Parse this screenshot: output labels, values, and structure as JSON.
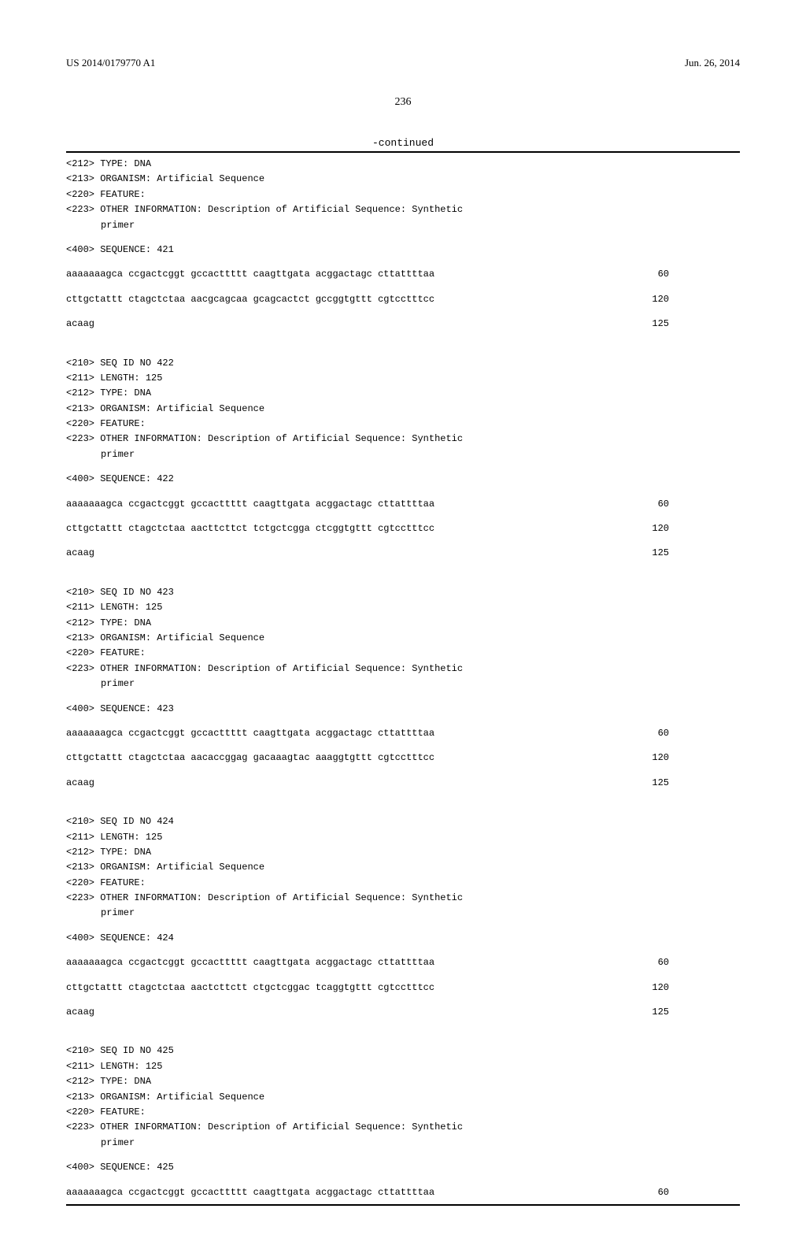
{
  "header": {
    "publication_number": "US 2014/0179770 A1",
    "publication_date": "Jun. 26, 2014"
  },
  "page_number": "236",
  "continued_label": "-continued",
  "top_entry": {
    "meta": [
      "<212> TYPE: DNA",
      "<213> ORGANISM: Artificial Sequence",
      "<220> FEATURE:",
      "<223> OTHER INFORMATION: Description of Artificial Sequence: Synthetic"
    ],
    "meta_indent": "primer",
    "seq_header": "<400> SEQUENCE: 421",
    "rows": [
      {
        "seq": "aaaaaaagca ccgactcggt gccacttttt caagttgata acggactagc cttattttaa",
        "pos": "60"
      },
      {
        "seq": "cttgctattt ctagctctaa aacgcagcaa gcagcactct gccggtgttt cgtcctttcc",
        "pos": "120"
      },
      {
        "seq": "acaag",
        "pos": "125"
      }
    ]
  },
  "entries": [
    {
      "meta": [
        "<210> SEQ ID NO 422",
        "<211> LENGTH: 125",
        "<212> TYPE: DNA",
        "<213> ORGANISM: Artificial Sequence",
        "<220> FEATURE:",
        "<223> OTHER INFORMATION: Description of Artificial Sequence: Synthetic"
      ],
      "meta_indent": "primer",
      "seq_header": "<400> SEQUENCE: 422",
      "rows": [
        {
          "seq": "aaaaaaagca ccgactcggt gccacttttt caagttgata acggactagc cttattttaa",
          "pos": "60"
        },
        {
          "seq": "cttgctattt ctagctctaa aacttcttct tctgctcgga ctcggtgttt cgtcctttcc",
          "pos": "120"
        },
        {
          "seq": "acaag",
          "pos": "125"
        }
      ]
    },
    {
      "meta": [
        "<210> SEQ ID NO 423",
        "<211> LENGTH: 125",
        "<212> TYPE: DNA",
        "<213> ORGANISM: Artificial Sequence",
        "<220> FEATURE:",
        "<223> OTHER INFORMATION: Description of Artificial Sequence: Synthetic"
      ],
      "meta_indent": "primer",
      "seq_header": "<400> SEQUENCE: 423",
      "rows": [
        {
          "seq": "aaaaaaagca ccgactcggt gccacttttt caagttgata acggactagc cttattttaa",
          "pos": "60"
        },
        {
          "seq": "cttgctattt ctagctctaa aacaccggag gacaaagtac aaaggtgttt cgtcctttcc",
          "pos": "120"
        },
        {
          "seq": "acaag",
          "pos": "125"
        }
      ]
    },
    {
      "meta": [
        "<210> SEQ ID NO 424",
        "<211> LENGTH: 125",
        "<212> TYPE: DNA",
        "<213> ORGANISM: Artificial Sequence",
        "<220> FEATURE:",
        "<223> OTHER INFORMATION: Description of Artificial Sequence: Synthetic"
      ],
      "meta_indent": "primer",
      "seq_header": "<400> SEQUENCE: 424",
      "rows": [
        {
          "seq": "aaaaaaagca ccgactcggt gccacttttt caagttgata acggactagc cttattttaa",
          "pos": "60"
        },
        {
          "seq": "cttgctattt ctagctctaa aactcttctt ctgctcggac tcaggtgttt cgtcctttcc",
          "pos": "120"
        },
        {
          "seq": "acaag",
          "pos": "125"
        }
      ]
    },
    {
      "meta": [
        "<210> SEQ ID NO 425",
        "<211> LENGTH: 125",
        "<212> TYPE: DNA",
        "<213> ORGANISM: Artificial Sequence",
        "<220> FEATURE:",
        "<223> OTHER INFORMATION: Description of Artificial Sequence: Synthetic"
      ],
      "meta_indent": "primer",
      "seq_header": "<400> SEQUENCE: 425",
      "rows": [
        {
          "seq": "aaaaaaagca ccgactcggt gccacttttt caagttgata acggactagc cttattttaa",
          "pos": "60"
        }
      ]
    }
  ]
}
